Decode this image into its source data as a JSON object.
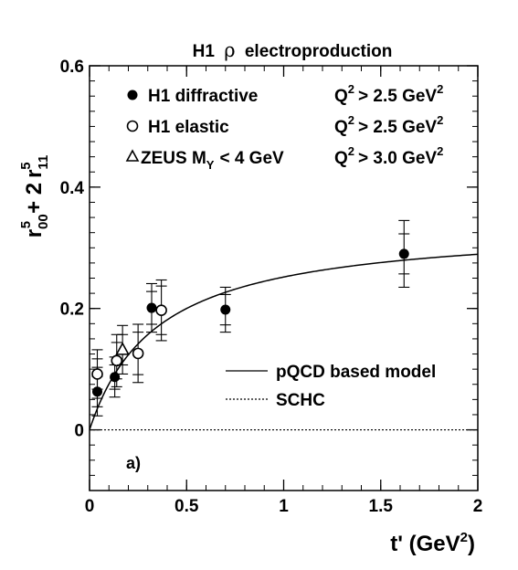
{
  "chart_data": {
    "type": "scatter",
    "title_prefix": "H1",
    "title_symbol": "ρ",
    "title_suffix": "electroproduction",
    "ylabel": {
      "r": "r",
      "sub1": "00",
      "sup1": "5",
      "plus": "+ 2",
      "r2": "r",
      "sub2": "11",
      "sup2": "5"
    },
    "xlabel": {
      "base": "t' (GeV",
      "sup": "2",
      "close": ")"
    },
    "panel_label": "a)",
    "xlim": [
      0,
      2
    ],
    "ylim": [
      -0.1,
      0.6
    ],
    "x_ticks": [
      {
        "v": 0,
        "label": "0"
      },
      {
        "v": 0.5,
        "label": "0.5"
      },
      {
        "v": 1,
        "label": "1"
      },
      {
        "v": 1.5,
        "label": "1.5"
      },
      {
        "v": 2,
        "label": "2"
      }
    ],
    "y_ticks": [
      {
        "v": 0,
        "label": "0"
      },
      {
        "v": 0.2,
        "label": "0.2"
      },
      {
        "v": 0.4,
        "label": "0.4"
      },
      {
        "v": 0.6,
        "label": "0.6"
      }
    ],
    "legend": [
      {
        "marker": "filled-circle",
        "label": "H1 diffractive",
        "q2_lhs": "Q",
        "q2_sup": "2",
        "q2_rhs": "> 2.5 GeV",
        "q2_rhs_sup": "2"
      },
      {
        "marker": "open-circle",
        "label": "H1 elastic",
        "q2_lhs": "Q",
        "q2_sup": "2",
        "q2_rhs": "> 2.5 GeV",
        "q2_rhs_sup": "2"
      },
      {
        "marker": "open-triangle",
        "label": "ZEUS M",
        "label_sub": "Y",
        "label_tail": "< 4 GeV",
        "q2_lhs": "Q",
        "q2_sup": "2",
        "q2_rhs": "> 3.0 GeV",
        "q2_rhs_sup": "2"
      }
    ],
    "curve_legend": [
      {
        "style": "solid",
        "label": "pQCD based model"
      },
      {
        "style": "dotted",
        "label": "SCHC"
      }
    ],
    "series": [
      {
        "name": "H1 diffractive",
        "marker": "filled-circle",
        "points": [
          {
            "x": 0.04,
            "y": 0.063,
            "stat": 0.025,
            "tot": 0.04
          },
          {
            "x": 0.13,
            "y": 0.087,
            "stat": 0.02,
            "tot": 0.033
          },
          {
            "x": 0.32,
            "y": 0.201,
            "stat": 0.027,
            "tot": 0.04
          },
          {
            "x": 0.7,
            "y": 0.198,
            "stat": 0.025,
            "tot": 0.037
          },
          {
            "x": 1.62,
            "y": 0.29,
            "stat": 0.033,
            "tot": 0.055
          }
        ]
      },
      {
        "name": "H1 elastic",
        "marker": "open-circle",
        "points": [
          {
            "x": 0.04,
            "y": 0.092,
            "stat": 0.025,
            "tot": 0.04
          },
          {
            "x": 0.14,
            "y": 0.114,
            "stat": 0.03,
            "tot": 0.043
          },
          {
            "x": 0.25,
            "y": 0.126,
            "stat": 0.035,
            "tot": 0.048
          },
          {
            "x": 0.37,
            "y": 0.197,
            "stat": 0.04,
            "tot": 0.05
          }
        ]
      },
      {
        "name": "ZEUS",
        "marker": "open-triangle",
        "points": [
          {
            "x": 0.17,
            "y": 0.132,
            "stat": 0.025,
            "tot": 0.04
          }
        ]
      }
    ],
    "curves": [
      {
        "name": "pQCD based model",
        "style": "solid",
        "formula": "0.34*x/(x+0.35)"
      },
      {
        "name": "SCHC",
        "style": "dotted",
        "value": 0
      }
    ]
  }
}
